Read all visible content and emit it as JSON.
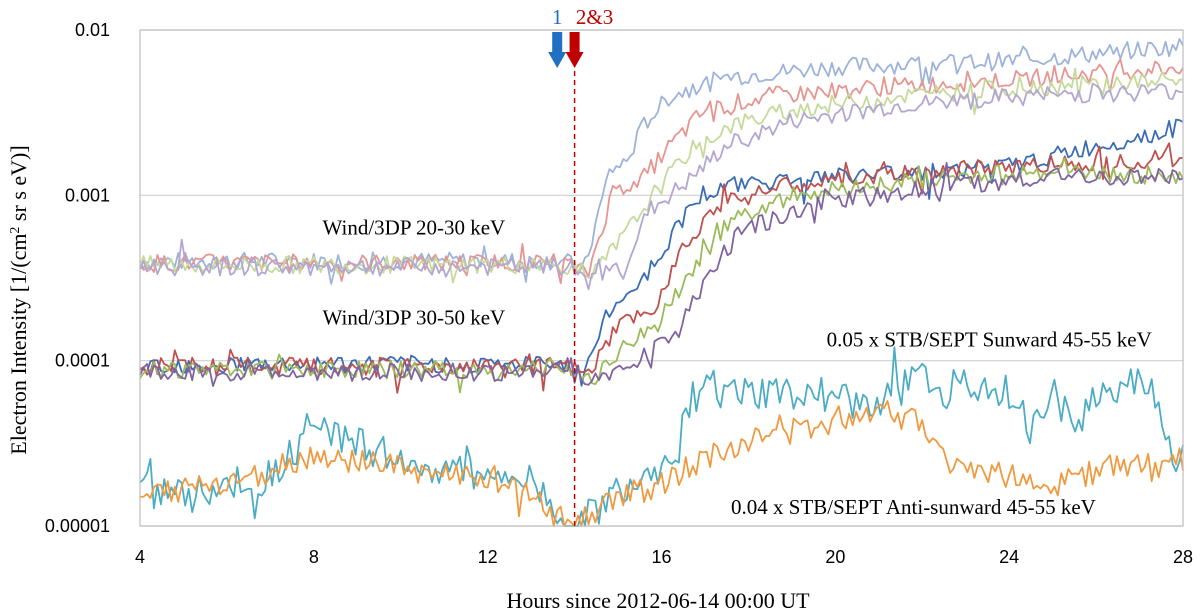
{
  "chart_data": {
    "type": "line",
    "title": "",
    "xlabel": "Hours since 2012-06-14 00:00 UT",
    "ylabel": "Electron Intensity [1/(cm² sr s eV)]",
    "ylabel_parts": [
      "Electron Intensity [1/(cm",
      "2",
      " sr s eV)]"
    ],
    "xlim": [
      4,
      28
    ],
    "ylim": [
      1e-05,
      0.01
    ],
    "yscale": "log",
    "xticks": [
      "4",
      "8",
      "12",
      "16",
      "20",
      "24",
      "28"
    ],
    "yticks": [
      "0.00001",
      "0.0001",
      "0.001",
      "0.01"
    ],
    "grid": "horizontal",
    "annotations": [
      {
        "text": "Wind/3DP 20-30 keV",
        "x": 8.2,
        "y": 0.00058
      },
      {
        "text": "Wind/3DP 30-50 keV",
        "x": 8.2,
        "y": 0.000165
      },
      {
        "text": "0.05 x STB/SEPT Sunward 45-55 keV",
        "x": 19.8,
        "y": 0.000122
      },
      {
        "text": "0.04 x STB/SEPT Anti-sunward 45-55 keV",
        "x": 17.6,
        "y": 1.18e-05
      }
    ],
    "markers": [
      {
        "label": "1",
        "x": 13.6,
        "color": "#1f6fc2"
      },
      {
        "label": "2&3",
        "x": 14.0,
        "color": "#c00000"
      }
    ],
    "vline": {
      "x": 14.0,
      "color": "#c00000"
    },
    "series": [
      {
        "group": "20-30",
        "color": "#9db3dc",
        "base": 0.0004,
        "post": [
          [
            14.2,
            0.00034
          ],
          [
            14.8,
            0.0014
          ],
          [
            15.2,
            0.0016
          ],
          [
            15.6,
            0.0027
          ],
          [
            16.2,
            0.004
          ],
          [
            17.5,
            0.0052
          ],
          [
            20,
            0.006
          ],
          [
            24,
            0.0065
          ],
          [
            28,
            0.008
          ]
        ]
      },
      {
        "group": "20-30",
        "color": "#e69590",
        "base": 0.00039,
        "post": [
          [
            14.3,
            0.00033
          ],
          [
            14.9,
            0.0011
          ],
          [
            15.5,
            0.0012
          ],
          [
            16.2,
            0.002
          ],
          [
            17,
            0.0033
          ],
          [
            18.5,
            0.004
          ],
          [
            21,
            0.0045
          ],
          [
            24,
            0.005
          ],
          [
            28,
            0.006
          ]
        ]
      },
      {
        "group": "20-30",
        "color": "#c5da9a",
        "base": 0.00038,
        "post": [
          [
            14.4,
            0.00032
          ],
          [
            15.2,
            0.0006
          ],
          [
            15.8,
            0.001
          ],
          [
            16.6,
            0.0018
          ],
          [
            17.5,
            0.0026
          ],
          [
            19,
            0.0033
          ],
          [
            21.5,
            0.004
          ],
          [
            24.5,
            0.0045
          ],
          [
            28,
            0.005
          ]
        ]
      },
      {
        "group": "20-30",
        "color": "#b3a6d3",
        "base": 0.00037,
        "post": [
          [
            14.5,
            0.00031
          ],
          [
            15.2,
            0.0004
          ],
          [
            15.7,
            0.0008
          ],
          [
            16.6,
            0.0012
          ],
          [
            17.5,
            0.002
          ],
          [
            19,
            0.0028
          ],
          [
            21.5,
            0.0035
          ],
          [
            24.5,
            0.004
          ],
          [
            28,
            0.0043
          ]
        ]
      },
      {
        "group": "30-50",
        "color": "#3a6db5",
        "base": 9.5e-05,
        "post": [
          [
            14.2,
            8.5e-05
          ],
          [
            14.8,
            0.0002
          ],
          [
            15.6,
            0.00032
          ],
          [
            16.3,
            0.0006
          ],
          [
            16.8,
            0.001
          ],
          [
            18,
            0.0012
          ],
          [
            20,
            0.0013
          ],
          [
            24,
            0.0015
          ],
          [
            28,
            0.0026
          ]
        ]
      },
      {
        "group": "30-50",
        "color": "#c0504d",
        "base": 9.2e-05,
        "post": [
          [
            14.3,
            8e-05
          ],
          [
            15.0,
            0.00016
          ],
          [
            15.8,
            0.0002
          ],
          [
            16.4,
            0.00045
          ],
          [
            17.2,
            0.00085
          ],
          [
            18.5,
            0.0011
          ],
          [
            21,
            0.0013
          ],
          [
            24,
            0.0015
          ],
          [
            28,
            0.0017
          ]
        ]
      },
      {
        "group": "30-50",
        "color": "#9bbb59",
        "base": 8.8e-05,
        "post": [
          [
            14.4,
            7.8e-05
          ],
          [
            15.3,
            0.00013
          ],
          [
            16.0,
            0.00017
          ],
          [
            16.8,
            0.0004
          ],
          [
            17.6,
            0.0007
          ],
          [
            19,
            0.001
          ],
          [
            21.5,
            0.0012
          ],
          [
            24.5,
            0.0014
          ],
          [
            28,
            0.0013
          ]
        ]
      },
      {
        "group": "30-50",
        "color": "#8064a2",
        "base": 8.5e-05,
        "post": [
          [
            14.5,
            7.6e-05
          ],
          [
            15.4,
            0.0001
          ],
          [
            16.2,
            0.00014
          ],
          [
            17.0,
            0.0003
          ],
          [
            17.8,
            0.0006
          ],
          [
            19.5,
            0.0009
          ],
          [
            22,
            0.0011
          ],
          [
            25,
            0.0013
          ],
          [
            28,
            0.0013
          ]
        ]
      },
      {
        "group": "sunward",
        "color": "#4bacc6",
        "pts": [
          [
            4,
            1.6e-05
          ],
          [
            5,
            1.5e-05
          ],
          [
            6,
            1.7e-05
          ],
          [
            7,
            2e-05
          ],
          [
            7.6,
            3e-05
          ],
          [
            8,
            4.2e-05
          ],
          [
            8.5,
            3.6e-05
          ],
          [
            9,
            3.2e-05
          ],
          [
            10,
            2.4e-05
          ],
          [
            11,
            2.2e-05
          ],
          [
            12,
            2e-05
          ],
          [
            13,
            1.8e-05
          ],
          [
            13.8,
            1.05e-05
          ],
          [
            14.2,
            1.1e-05
          ],
          [
            15,
            1.6e-05
          ],
          [
            15.6,
            2e-05
          ],
          [
            16,
            2.8e-05
          ],
          [
            16.4,
            3e-05
          ],
          [
            16.6,
            5.5e-05
          ],
          [
            17,
            7e-05
          ],
          [
            18,
            6e-05
          ],
          [
            19,
            6.5e-05
          ],
          [
            20,
            6.2e-05
          ],
          [
            20.5,
            5e-05
          ],
          [
            21,
            6e-05
          ],
          [
            22,
            7.5e-05
          ],
          [
            23,
            7.2e-05
          ],
          [
            24,
            6.6e-05
          ],
          [
            24.6,
            4e-05
          ],
          [
            25,
            6.2e-05
          ],
          [
            25.6,
            4.2e-05
          ],
          [
            26,
            6.3e-05
          ],
          [
            26.6,
            7e-05
          ],
          [
            27,
            8.2e-05
          ],
          [
            27.4,
            6e-05
          ],
          [
            27.7,
            2.8e-05
          ],
          [
            28,
            2.5e-05
          ]
        ]
      },
      {
        "group": "antisunward",
        "color": "#f09a40",
        "pts": [
          [
            4,
            1.4e-05
          ],
          [
            5,
            1.7e-05
          ],
          [
            6,
            1.8e-05
          ],
          [
            7,
            2.2e-05
          ],
          [
            8,
            2.6e-05
          ],
          [
            9,
            2.5e-05
          ],
          [
            10,
            2.2e-05
          ],
          [
            11,
            2e-05
          ],
          [
            12,
            2e-05
          ],
          [
            13,
            1.7e-05
          ],
          [
            13.8,
            1.05e-05
          ],
          [
            14.2,
            1.1e-05
          ],
          [
            15,
            1.5e-05
          ],
          [
            16,
            1.8e-05
          ],
          [
            16.6,
            2.2e-05
          ],
          [
            17.5,
            3e-05
          ],
          [
            18.5,
            3.5e-05
          ],
          [
            19.5,
            4e-05
          ],
          [
            20.5,
            4.8e-05
          ],
          [
            21.2,
            5.2e-05
          ],
          [
            21.8,
            4.5e-05
          ],
          [
            22.3,
            3.5e-05
          ],
          [
            22.5,
            2.5e-05
          ],
          [
            23.5,
            2.2e-05
          ],
          [
            24.5,
            1.8e-05
          ],
          [
            25.5,
            2e-05
          ],
          [
            26.5,
            2.3e-05
          ],
          [
            27.5,
            2.2e-05
          ],
          [
            28,
            2.6e-05
          ]
        ]
      }
    ]
  }
}
